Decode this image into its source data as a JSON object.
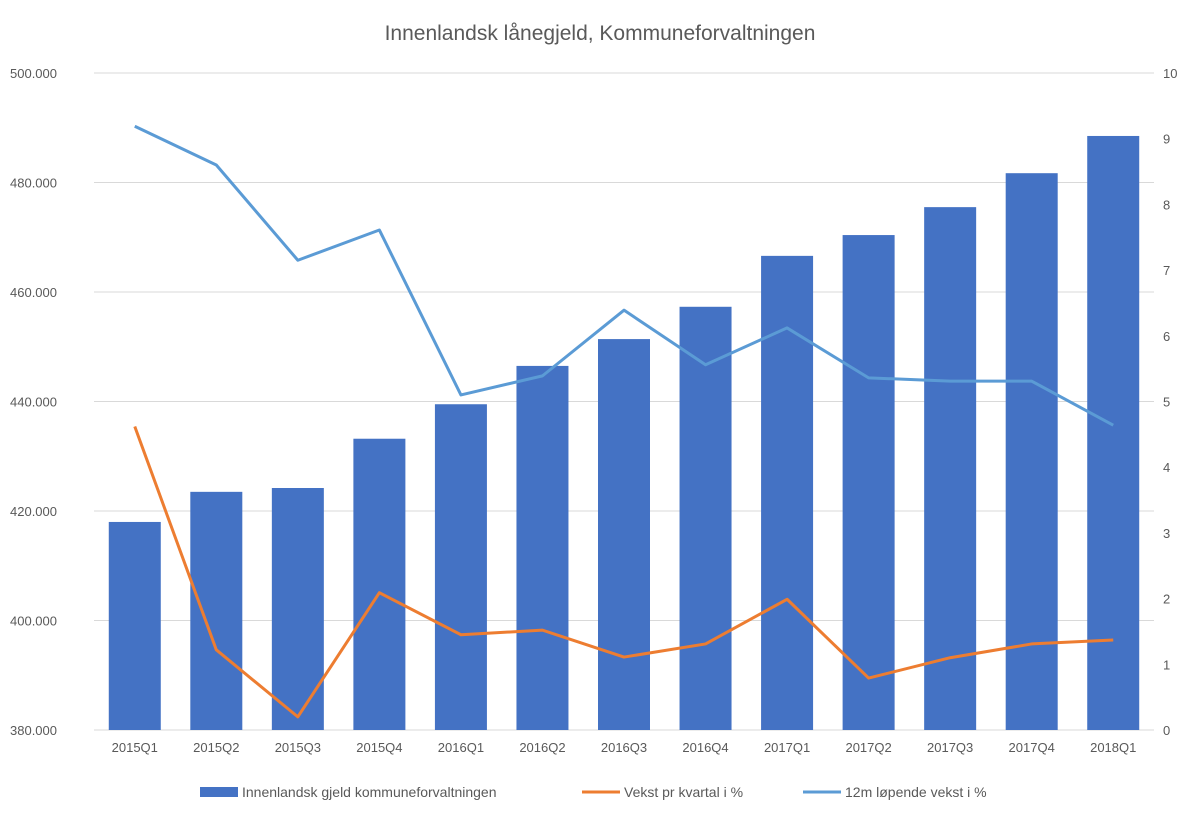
{
  "chart_data": {
    "type": "bar",
    "title": "Innenlandsk lånegjeld, Kommuneforvaltningen",
    "categories": [
      "2015Q1",
      "2015Q2",
      "2015Q3",
      "2015Q4",
      "2016Q1",
      "2016Q2",
      "2016Q3",
      "2016Q4",
      "2017Q1",
      "2017Q2",
      "2017Q3",
      "2017Q4",
      "2018Q1"
    ],
    "y_left": {
      "min": 380000,
      "max": 500000,
      "ticks": [
        "380.000",
        "400.000",
        "420.000",
        "440.000",
        "460.000",
        "480.000",
        "500.000"
      ],
      "tick_values": [
        380000,
        400000,
        420000,
        440000,
        460000,
        480000,
        500000
      ]
    },
    "y_right": {
      "min": 0,
      "max": 10,
      "ticks": [
        "0",
        "1",
        "2",
        "3",
        "4",
        "5",
        "6",
        "7",
        "8",
        "9",
        "10"
      ],
      "tick_values": [
        0,
        1,
        2,
        3,
        4,
        5,
        6,
        7,
        8,
        9,
        10
      ]
    },
    "grid": true,
    "legend_position": "bottom",
    "series": [
      {
        "name": "Innenlandsk gjeld kommuneforvaltningen",
        "type": "bar",
        "axis": "left",
        "color": "#4472C4",
        "values": [
          418000,
          423500,
          424200,
          433200,
          439500,
          446500,
          451400,
          457300,
          466600,
          470400,
          475500,
          481700,
          488500
        ]
      },
      {
        "name": "Vekst pr kvartal i %",
        "type": "line",
        "axis": "right",
        "color": "#ED7D31",
        "values": [
          4.62,
          1.22,
          0.2,
          2.09,
          1.45,
          1.52,
          1.11,
          1.31,
          1.99,
          0.79,
          1.1,
          1.31,
          1.37
        ]
      },
      {
        "name": "12m løpende vekst i %",
        "type": "line",
        "axis": "right",
        "color": "#5B9BD5",
        "values": [
          9.19,
          8.6,
          7.15,
          7.61,
          5.1,
          5.39,
          6.39,
          5.56,
          6.12,
          5.36,
          5.31,
          5.31,
          4.64
        ]
      }
    ]
  }
}
